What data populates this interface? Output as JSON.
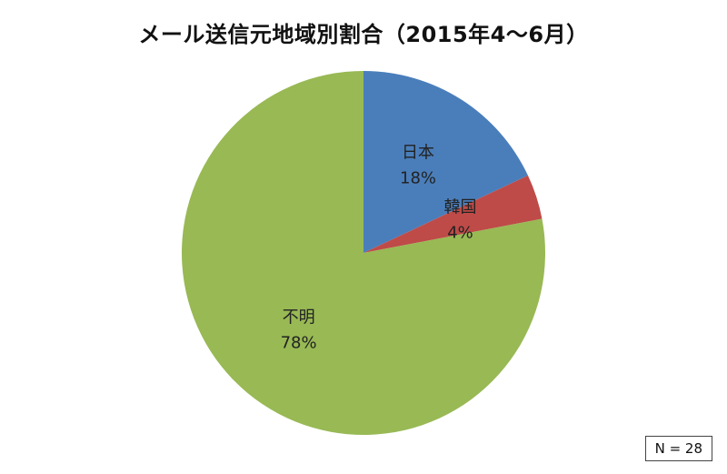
{
  "chart_data": {
    "type": "pie",
    "title": "メール送信元地域別割合（2015年4～6月）",
    "slices": [
      {
        "label": "日本",
        "value": 18,
        "value_label": "18%",
        "color": "#4a7ebb"
      },
      {
        "label": "韓国",
        "value": 4,
        "value_label": "4%",
        "color": "#be4b48"
      },
      {
        "label": "不明",
        "value": 78,
        "value_label": "78%",
        "color": "#98b954"
      }
    ],
    "start": "12 o'clock",
    "direction": "clockwise",
    "note": "N = 28"
  }
}
